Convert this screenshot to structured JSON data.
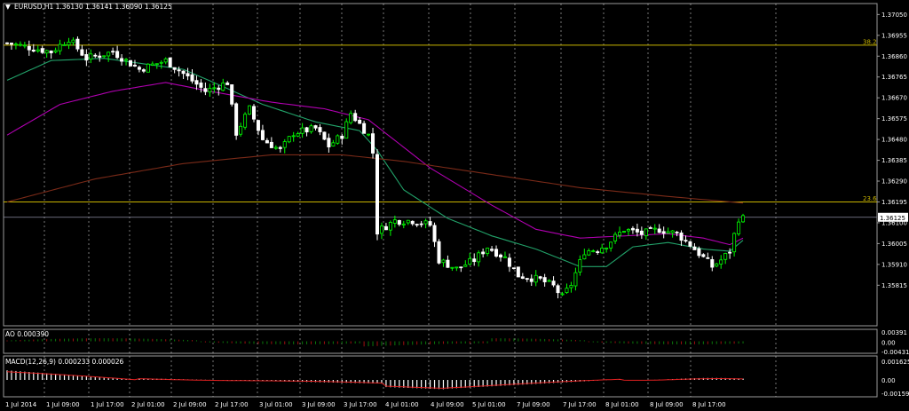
{
  "window": {
    "title": "EURUSD,H1  1.36130 1.36141 1.36090 1.36125"
  },
  "indicators": {
    "ao_label": "AO 0.000390",
    "macd_label": "MACD(12,26,9) 0.000233 0.000026"
  },
  "colors": {
    "background": "#000000",
    "bull": "#00ff00",
    "bear": "#ffffff",
    "fib_line": "#c8b400",
    "ma_fast": "#22a36a",
    "ma_medium": "#b000b0",
    "ma_slow": "#7a2a18",
    "grid": "#c8c8c8",
    "macd_signal": "#e02020"
  },
  "chart_data": [
    {
      "type": "candlestick",
      "symbol": "EURUSD",
      "timeframe": "H1",
      "ylim": [
        1.3563,
        1.371
      ],
      "y_ticks": [
        "1.37050",
        "1.36955",
        "1.36860",
        "1.36765",
        "1.36670",
        "1.36575",
        "1.36480",
        "1.36385",
        "1.36290",
        "1.36195",
        "1.36100",
        "1.36005",
        "1.35910",
        "1.35815"
      ],
      "current_price": "1.36125",
      "x_ticks": [
        "1 Jul 2014",
        "1 Jul 09:00",
        "1 Jul 17:00",
        "2 Jul 01:00",
        "2 Jul 09:00",
        "2 Jul 17:00",
        "3 Jul 01:00",
        "3 Jul 09:00",
        "3 Jul 17:00",
        "4 Jul 01:00",
        "4 Jul 09:00",
        "5 Jul 01:00",
        "7 Jul 09:00",
        "7 Jul 17:00",
        "8 Jul 01:00",
        "8 Jul 09:00",
        "8 Jul 17:00"
      ],
      "levels": [
        {
          "label": "38.2",
          "value": 1.3691
        },
        {
          "label": "23.6",
          "value": 1.36195
        }
      ],
      "close_path": [
        [
          0,
          1.3692
        ],
        [
          10,
          1.3688
        ],
        [
          14,
          1.3694
        ],
        [
          18,
          1.3685
        ],
        [
          24,
          1.3688
        ],
        [
          30,
          1.368
        ],
        [
          36,
          1.3684
        ],
        [
          40,
          1.3678
        ],
        [
          45,
          1.367
        ],
        [
          50,
          1.3674
        ],
        [
          52,
          1.3651
        ],
        [
          55,
          1.3662
        ],
        [
          58,
          1.3648
        ],
        [
          62,
          1.3643
        ],
        [
          65,
          1.3651
        ],
        [
          70,
          1.3653
        ],
        [
          73,
          1.3645
        ],
        [
          76,
          1.365
        ],
        [
          78,
          1.366
        ],
        [
          82,
          1.365
        ],
        [
          83,
          1.3642
        ],
        [
          84,
          1.3606
        ],
        [
          88,
          1.3611
        ],
        [
          92,
          1.3611
        ],
        [
          96,
          1.3609
        ],
        [
          98,
          1.3593
        ],
        [
          102,
          1.3589
        ],
        [
          106,
          1.3593
        ],
        [
          109,
          1.3599
        ],
        [
          113,
          1.3594
        ],
        [
          116,
          1.3586
        ],
        [
          121,
          1.3584
        ],
        [
          124,
          1.3581
        ],
        [
          126,
          1.3576
        ],
        [
          128,
          1.3582
        ],
        [
          131,
          1.3597
        ],
        [
          134,
          1.3598
        ],
        [
          136,
          1.36
        ],
        [
          140,
          1.3607
        ],
        [
          144,
          1.3605
        ],
        [
          148,
          1.3607
        ],
        [
          152,
          1.3605
        ],
        [
          155,
          1.36
        ],
        [
          158,
          1.3594
        ],
        [
          160,
          1.359
        ],
        [
          162,
          1.3593
        ],
        [
          164,
          1.3597
        ],
        [
          166,
          1.3612
        ],
        [
          167,
          1.3612
        ]
      ],
      "moving_averages": [
        {
          "key": "ma_fast",
          "path": [
            [
              0,
              1.3675
            ],
            [
              10,
              1.3684
            ],
            [
              22,
              1.3685
            ],
            [
              40,
              1.368
            ],
            [
              48,
              1.3673
            ],
            [
              58,
              1.3664
            ],
            [
              70,
              1.3656
            ],
            [
              80,
              1.3652
            ],
            [
              84,
              1.3643
            ],
            [
              90,
              1.3625
            ],
            [
              100,
              1.3612
            ],
            [
              110,
              1.3604
            ],
            [
              120,
              1.3598
            ],
            [
              130,
              1.359
            ],
            [
              136,
              1.359
            ],
            [
              142,
              1.3599
            ],
            [
              150,
              1.3601
            ],
            [
              158,
              1.3598
            ],
            [
              164,
              1.3597
            ],
            [
              167,
              1.3602
            ]
          ]
        },
        {
          "key": "ma_medium",
          "path": [
            [
              0,
              1.365
            ],
            [
              12,
              1.3664
            ],
            [
              24,
              1.367
            ],
            [
              36,
              1.3674
            ],
            [
              46,
              1.367
            ],
            [
              60,
              1.3665
            ],
            [
              72,
              1.3662
            ],
            [
              82,
              1.3657
            ],
            [
              96,
              1.3635
            ],
            [
              110,
              1.3618
            ],
            [
              120,
              1.3607
            ],
            [
              130,
              1.3603
            ],
            [
              140,
              1.3604
            ],
            [
              150,
              1.3605
            ],
            [
              158,
              1.3603
            ],
            [
              164,
              1.36
            ],
            [
              167,
              1.3603
            ]
          ]
        },
        {
          "key": "ma_slow",
          "path": [
            [
              0,
              1.36195
            ],
            [
              20,
              1.363
            ],
            [
              40,
              1.3637
            ],
            [
              60,
              1.3641
            ],
            [
              76,
              1.3641
            ],
            [
              90,
              1.3638
            ],
            [
              110,
              1.3632
            ],
            [
              130,
              1.3626
            ],
            [
              150,
              1.3622
            ],
            [
              167,
              1.3619
            ]
          ]
        }
      ]
    },
    {
      "type": "bar",
      "name": "AO",
      "y_ticks": [
        "0.00391",
        "0.00",
        "-0.00431"
      ],
      "ylim": [
        -0.00431,
        0.00391
      ]
    },
    {
      "type": "bar",
      "name": "MACD(12,26,9)",
      "y_ticks": [
        "0.001625",
        "0.00",
        "-0.00159"
      ],
      "ylim": [
        -0.00159,
        0.001625
      ]
    }
  ]
}
